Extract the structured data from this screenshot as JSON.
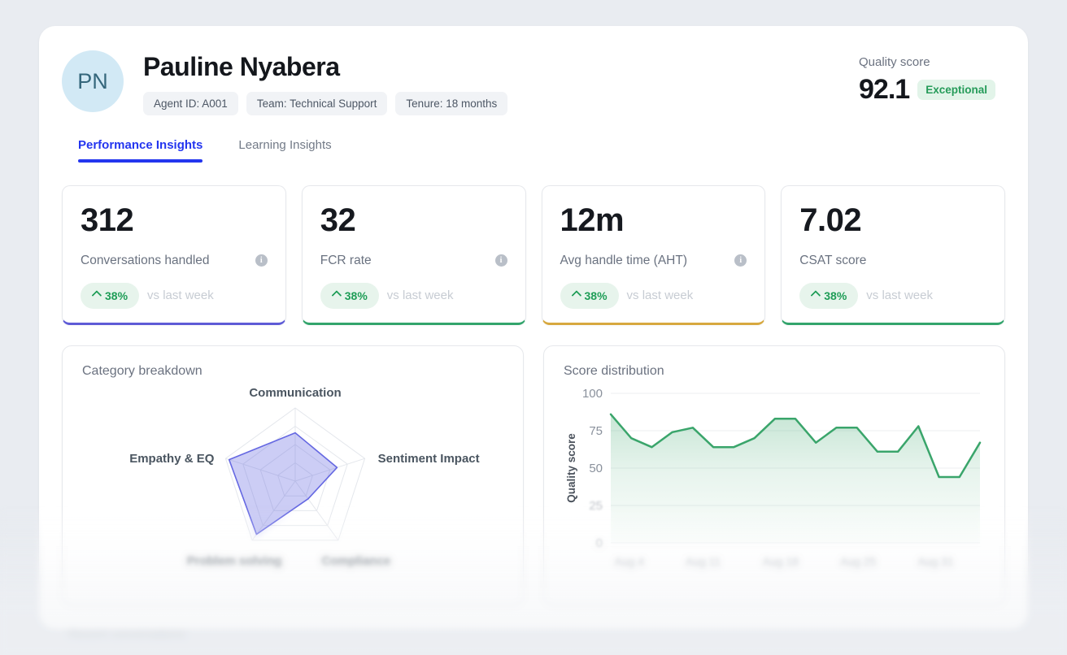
{
  "theme": {
    "tab_active_blue": "#2335ef",
    "positive_green": "#1f9d57",
    "badge_green_bg": "#e7f4ec",
    "chart_green": "#3aa56b",
    "radar_indigo": "#6568e2"
  },
  "header": {
    "avatar_initials": "PN",
    "name": "Pauline Nyabera",
    "badges": {
      "agent_id": "Agent ID: A001",
      "team": "Team: Technical Support",
      "tenure": "Tenure: 18 months"
    },
    "quality": {
      "label": "Quality score",
      "value": "92.1",
      "badge": "Exceptional"
    }
  },
  "tabs": {
    "performance": "Performance Insights",
    "learning": "Learning Insights"
  },
  "metrics": [
    {
      "value": "312",
      "label": "Conversations handled",
      "delta": "38%",
      "context": "vs last week",
      "accent": "#5e5bd6",
      "info_glyph": "i"
    },
    {
      "value": "32",
      "label": "FCR rate",
      "delta": "38%",
      "context": "vs last week",
      "accent": "#33a46c",
      "info_glyph": "i"
    },
    {
      "value": "12m",
      "label": "Avg handle time (AHT)",
      "delta": "38%",
      "context": "vs last week",
      "accent": "#d7a83f",
      "info_glyph": "i"
    },
    {
      "value": "7.02",
      "label": "CSAT score",
      "delta": "38%",
      "context": "vs last week",
      "accent": "#33a46c"
    }
  ],
  "footer_note": "Recent conversations",
  "chart_data": [
    {
      "type": "radar",
      "title": "Category breakdown",
      "categories": [
        "Communication",
        "Sentiment Impact",
        "Compliance",
        "Problem solving",
        "Empathy & EQ"
      ],
      "values": [
        66,
        60,
        30,
        90,
        95
      ],
      "max": 100,
      "rings": 4,
      "grid": "pentagon",
      "fill_color": "#6568e2",
      "fill_opacity": 0.33
    },
    {
      "type": "area",
      "title": "Score distribution",
      "ylabel": "Quality score",
      "ylim": [
        0,
        100
      ],
      "yticks": [
        0,
        25,
        50,
        75,
        100
      ],
      "xticklabels": [
        "Aug 4",
        "Aug 11",
        "Aug 18",
        "Aug 25",
        "Aug 31"
      ],
      "values": [
        86,
        70,
        64,
        74,
        77,
        64,
        64,
        70,
        83,
        83,
        67,
        77,
        77,
        61,
        61,
        78,
        44,
        44,
        67
      ],
      "line_color": "#3aa56b",
      "grid": true,
      "legend": "none"
    }
  ]
}
